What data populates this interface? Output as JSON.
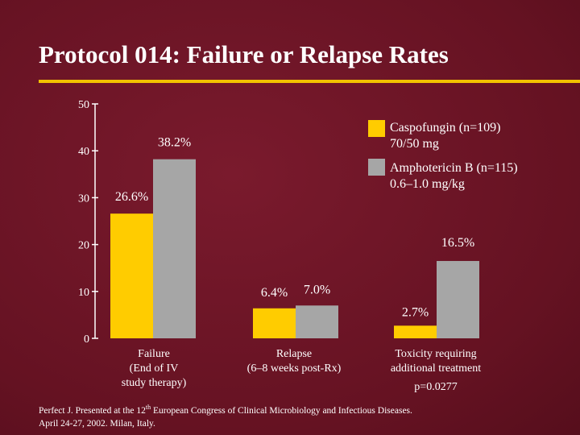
{
  "title": "Protocol 014: Failure or Relapse Rates",
  "colors": {
    "accent": "#f2c200",
    "caspofungin": "#ffcc00",
    "amphotericin": "#a6a6a6",
    "background": "#6e1526"
  },
  "chart_data": {
    "type": "bar",
    "categories": [
      [
        "Failure",
        "(End of IV",
        "study therapy)"
      ],
      [
        "Relapse",
        "(6–8 weeks post-Rx)"
      ],
      [
        "Toxicity requiring",
        "additional treatment"
      ]
    ],
    "series": [
      {
        "name": "Caspofungin (n=109)",
        "detail": "70/50 mg",
        "color": "#ffcc00",
        "values": [
          26.6,
          6.4,
          2.7
        ],
        "labels": [
          "26.6%",
          "6.4%",
          "2.7%"
        ]
      },
      {
        "name": "Amphotericin B (n=115)",
        "detail": "0.6–1.0 mg/kg",
        "color": "#a6a6a6",
        "values": [
          38.2,
          7.0,
          16.5
        ],
        "labels": [
          "38.2%",
          "7.0%",
          "16.5%"
        ]
      }
    ],
    "yticks": [
      0,
      10,
      20,
      30,
      40,
      50
    ],
    "ylim": [
      0,
      50
    ],
    "xlabel": "",
    "ylabel": "",
    "annotation": "p=0.0277"
  },
  "footnote": {
    "line1_pre": "Perfect J. Presented at the 12",
    "line1_sup": "th",
    "line1_post": " European Congress of Clinical Microbiology and Infectious Diseases.",
    "line2": "April 24-27, 2002. Milan, Italy."
  }
}
